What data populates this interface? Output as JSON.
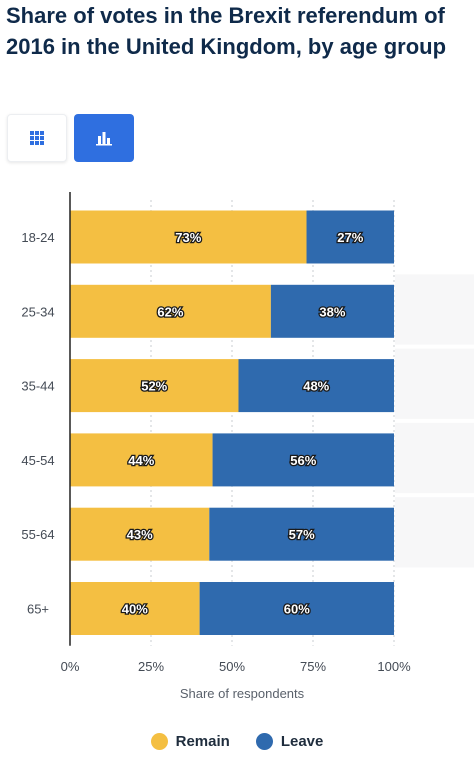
{
  "header": {
    "title": "Share of votes in the Brexit referendum of 2016 in the United Kingdom, by age group"
  },
  "view_toggle": {
    "table_icon": "table-grid-icon",
    "chart_icon": "bar-chart-icon",
    "active": "chart"
  },
  "colors": {
    "remain": "#f4bf42",
    "leave": "#2f6aae",
    "accent": "#2f6fe0",
    "title": "#0f2a4a"
  },
  "chart_data": {
    "type": "bar",
    "orientation": "horizontal",
    "stacked": true,
    "categories": [
      "18-24",
      "25-34",
      "35-44",
      "45-54",
      "55-64",
      "65+"
    ],
    "series": [
      {
        "name": "Remain",
        "values": [
          73,
          62,
          52,
          44,
          43,
          40
        ]
      },
      {
        "name": "Leave",
        "values": [
          27,
          38,
          48,
          56,
          57,
          60
        ]
      }
    ],
    "value_labels": [
      [
        "73%",
        "62%",
        "52%",
        "44%",
        "43%",
        "40%"
      ],
      [
        "27%",
        "38%",
        "48%",
        "56%",
        "57%",
        "60%"
      ]
    ],
    "x_ticks": [
      "0%",
      "25%",
      "50%",
      "75%",
      "100%"
    ],
    "xlim": [
      0,
      100
    ],
    "xlabel": "Share of respondents",
    "ylabel": "",
    "grid": true,
    "legend_position": "bottom"
  }
}
